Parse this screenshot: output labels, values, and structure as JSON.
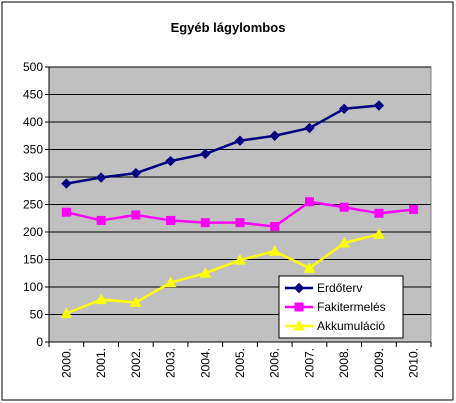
{
  "chart_data": {
    "type": "line",
    "title": "Egyéb lágylombos",
    "categories": [
      "2000.",
      "2001.",
      "2002.",
      "2003.",
      "2004.",
      "2005.",
      "2006.",
      "2007.",
      "2008.",
      "2009.",
      "2010."
    ],
    "ylim": [
      0,
      500
    ],
    "yticks": [
      0,
      50,
      100,
      150,
      200,
      250,
      300,
      350,
      400,
      450,
      500
    ],
    "grid": "horizontal",
    "legend_position": "bottom-right",
    "plot_background": "#c0c0c0",
    "series": [
      {
        "name": "Erdőterv",
        "color": "#000080",
        "marker": "diamond",
        "values": [
          288,
          299,
          307,
          329,
          342,
          366,
          375,
          389,
          424,
          430,
          null
        ]
      },
      {
        "name": "Fakitermelés",
        "color": "#ff00ff",
        "marker": "square",
        "values": [
          236,
          221,
          231,
          221,
          217,
          217,
          210,
          255,
          245,
          234,
          241
        ]
      },
      {
        "name": "Akkumuláció",
        "color": "#ffff00",
        "marker": "triangle",
        "values": [
          52,
          77,
          72,
          108,
          125,
          149,
          165,
          134,
          180,
          196,
          null
        ]
      }
    ]
  }
}
